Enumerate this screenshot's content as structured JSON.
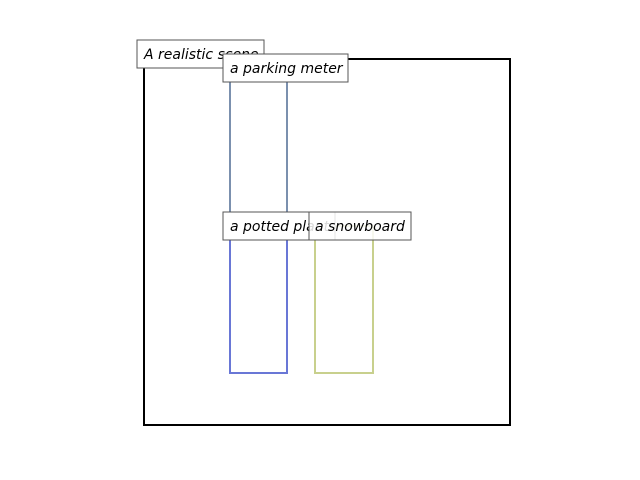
{
  "scene": {
    "label": "A realistic scene",
    "frame_color": "#000000"
  },
  "boxes": [
    {
      "id": "parking-meter",
      "label": "a parking meter",
      "color": "#7b90ae"
    },
    {
      "id": "potted-plant",
      "label": "a potted plant",
      "color": "#6977d6"
    },
    {
      "id": "snowboard",
      "label": "a snowboard",
      "color": "#c8d08d"
    }
  ],
  "label_box": {
    "fill": "#ffffff",
    "stroke": "#555555"
  }
}
